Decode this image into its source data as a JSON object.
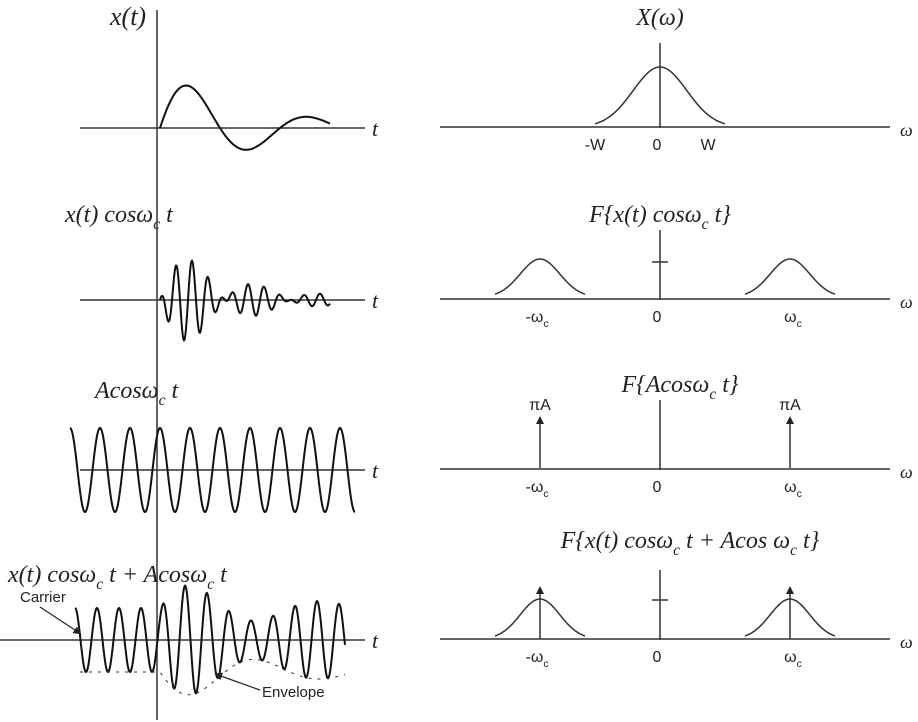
{
  "panels": [
    {
      "time": {
        "label": [
          {
            "t": "x(t)"
          }
        ],
        "axis": "t"
      },
      "freq": {
        "label": [
          {
            "t": "X(ω)"
          }
        ],
        "axis": "ω",
        "ticks": [
          [
            {
              "t": "-W"
            }
          ],
          [
            {
              "t": "0"
            }
          ],
          [
            {
              "t": "W"
            }
          ]
        ]
      }
    },
    {
      "time": {
        "label": [
          {
            "t": "x(t) cosω"
          },
          {
            "sub": "c"
          },
          {
            "t": " t"
          }
        ],
        "axis": "t"
      },
      "freq": {
        "label": [
          {
            "t": "F{x(t) cosω"
          },
          {
            "sub": "c"
          },
          {
            "t": " t}"
          }
        ],
        "axis": "ω",
        "ticks": [
          [
            {
              "t": "-ω"
            },
            {
              "sub": "c"
            }
          ],
          [
            {
              "t": "0"
            }
          ],
          [
            {
              "t": "ω"
            },
            {
              "sub": "c"
            }
          ]
        ]
      }
    },
    {
      "time": {
        "label": [
          {
            "t": "Acosω"
          },
          {
            "sub": "c"
          },
          {
            "t": " t"
          }
        ],
        "axis": "t"
      },
      "freq": {
        "label": [
          {
            "t": "F{Acosω"
          },
          {
            "sub": "c"
          },
          {
            "t": " t}"
          }
        ],
        "axis": "ω",
        "ticks": [
          [
            {
              "t": "-ω"
            },
            {
              "sub": "c"
            }
          ],
          [
            {
              "t": "0"
            }
          ],
          [
            {
              "t": "ω"
            },
            {
              "sub": "c"
            }
          ]
        ],
        "impulse_labels": [
          "πA",
          "πA"
        ]
      }
    },
    {
      "time": {
        "label": [
          {
            "t": "x(t) cosω"
          },
          {
            "sub": "c"
          },
          {
            "t": " t + Acosω"
          },
          {
            "sub": "c"
          },
          {
            "t": " t"
          }
        ],
        "axis": "t"
      },
      "freq": {
        "label": [
          {
            "t": "F{x(t) cosω"
          },
          {
            "sub": "c"
          },
          {
            "t": " t + Acos ω"
          },
          {
            "sub": "c"
          },
          {
            "t": " t}"
          }
        ],
        "axis": "ω",
        "ticks": [
          [
            {
              "t": "-ω"
            },
            {
              "sub": "c"
            }
          ],
          [
            {
              "t": "0"
            }
          ],
          [
            {
              "t": "ω"
            },
            {
              "sub": "c"
            }
          ]
        ]
      }
    }
  ],
  "annotations": {
    "carrier": "Carrier",
    "envelope": "Envelope"
  }
}
